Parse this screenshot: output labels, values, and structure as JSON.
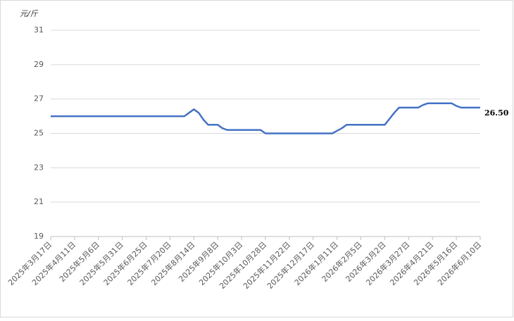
{
  "chart_data": {
    "type": "line",
    "y_label": "元/斤",
    "categories": [
      "2025年3月17日",
      null,
      null,
      null,
      null,
      "2025年4月11日",
      null,
      null,
      null,
      null,
      "2025年5月6日",
      null,
      null,
      null,
      null,
      "2025年5月31日",
      null,
      null,
      null,
      null,
      "2025年6月25日",
      null,
      null,
      null,
      null,
      "2025年7月20日",
      null,
      null,
      null,
      null,
      "2025年8月14日",
      null,
      null,
      null,
      null,
      "2025年9月8日",
      null,
      null,
      null,
      null,
      "2025年10月3日",
      null,
      null,
      null,
      null,
      "2025年10月28日",
      null,
      null,
      null,
      null,
      "2025年11月22日",
      null,
      null,
      null,
      null,
      "2025年12月17日",
      null,
      null,
      null,
      null,
      "2026年1月11日",
      null,
      null,
      null,
      null,
      "2026年2月5日",
      null,
      null,
      null,
      null,
      "2026年3月2日",
      null,
      null,
      null,
      null,
      "2026年3月27日",
      null,
      null,
      null,
      null,
      "2026年4月21日",
      null,
      null,
      null,
      null,
      "2026年5月16日",
      null,
      null,
      null,
      null,
      "2026年6月10日"
    ],
    "values": [
      26,
      26,
      26,
      26,
      26,
      26,
      26,
      26,
      26,
      26,
      26,
      26,
      26,
      26,
      26,
      26,
      26,
      26,
      26,
      26,
      26,
      26,
      26,
      26,
      26,
      26,
      26,
      26,
      26,
      26.2,
      26.4,
      26.2,
      25.8,
      25.5,
      25.5,
      25.5,
      25.3,
      25.2,
      25.2,
      25.2,
      25.2,
      25.2,
      25.2,
      25.2,
      25.2,
      25,
      25,
      25,
      25,
      25,
      25,
      25,
      25,
      25,
      25,
      25,
      25,
      25,
      25,
      25,
      25.15,
      25.3,
      25.5,
      25.5,
      25.5,
      25.5,
      25.5,
      25.5,
      25.5,
      25.5,
      25.5,
      25.85,
      26.2,
      26.5,
      26.5,
      26.5,
      26.5,
      26.5,
      26.65,
      26.75,
      26.75,
      26.75,
      26.75,
      26.75,
      26.75,
      26.6,
      26.5,
      26.5,
      26.5,
      26.5,
      26.5
    ],
    "value_labels": [
      null,
      null,
      null,
      null,
      null,
      null,
      null,
      null,
      null,
      null,
      null,
      null,
      null,
      null,
      null,
      null,
      null,
      null,
      null,
      null,
      null,
      null,
      null,
      null,
      null,
      null,
      null,
      null,
      null,
      null,
      null,
      null,
      null,
      null,
      null,
      null,
      null,
      null,
      null,
      null,
      null,
      null,
      null,
      null,
      null,
      null,
      null,
      null,
      null,
      null,
      null,
      null,
      null,
      null,
      null,
      null,
      null,
      null,
      null,
      null,
      null,
      null,
      null,
      null,
      null,
      null,
      null,
      null,
      null,
      null,
      null,
      null,
      null,
      null,
      null,
      null,
      null,
      null,
      null,
      null,
      null,
      null,
      null,
      null,
      null,
      null,
      null,
      null,
      null,
      null,
      "26.50"
    ],
    "color": "#4472c4",
    "ylim": [
      19,
      31
    ],
    "yticks": [
      19,
      21,
      23,
      25,
      27,
      29,
      31
    ],
    "grid": true
  }
}
